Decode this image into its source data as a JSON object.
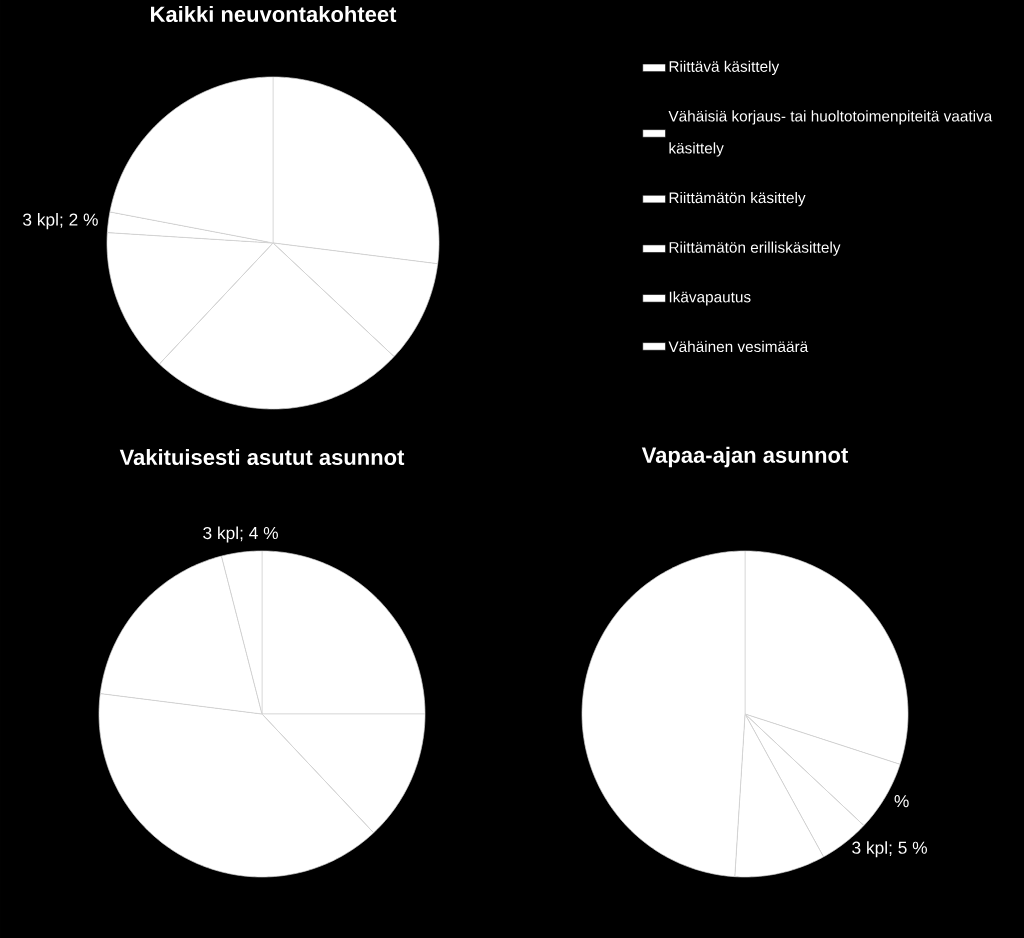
{
  "chart_data": [
    {
      "type": "pie",
      "title": "Kaikki neuvontakohteet",
      "categories": [
        "Riittävä käsittely",
        "Vähäisiä korjaus- tai huoltotoimenpiteitä vaativa käsittely",
        "Riittämätön käsittely",
        "Riittämätön erilliskäsittely",
        "Ikävapautus",
        "Vähäinen vesimäärä"
      ],
      "values": [
        27,
        10,
        25,
        14,
        2,
        22
      ],
      "colors": [
        "#ffffff",
        "#ffffff",
        "#ffffff",
        "#ffffff",
        "#ffffff",
        "#ffffff"
      ],
      "value_labels": [
        null,
        null,
        null,
        null,
        "3 kpl; 2 %",
        null
      ],
      "legend": "right"
    },
    {
      "type": "pie",
      "title": "Vakituisesti asutut asunnot",
      "categories": [
        null,
        null,
        null,
        null,
        null,
        null
      ],
      "values": [
        25,
        13,
        39,
        19,
        4,
        null
      ],
      "colors": [
        "#ffffff",
        "#ffffff",
        "#ffffff",
        "#ffffff",
        "#ffffff",
        "#ffffff"
      ],
      "value_labels": [
        null,
        null,
        null,
        null,
        "3 kpl; 4 %",
        null
      ]
    },
    {
      "type": "pie",
      "title": "Vapaa-ajan asunnot",
      "categories": [
        null,
        null,
        null,
        null,
        null,
        null
      ],
      "values": [
        30,
        7,
        5,
        9,
        null,
        49
      ],
      "colors": [
        "#ffffff",
        "#ffffff",
        "#ffffff",
        "#ffffff",
        "#ffffff",
        "#ffffff"
      ],
      "value_labels": [
        null,
        "%",
        "3 kpl; 5 %",
        null,
        null,
        null
      ]
    }
  ]
}
